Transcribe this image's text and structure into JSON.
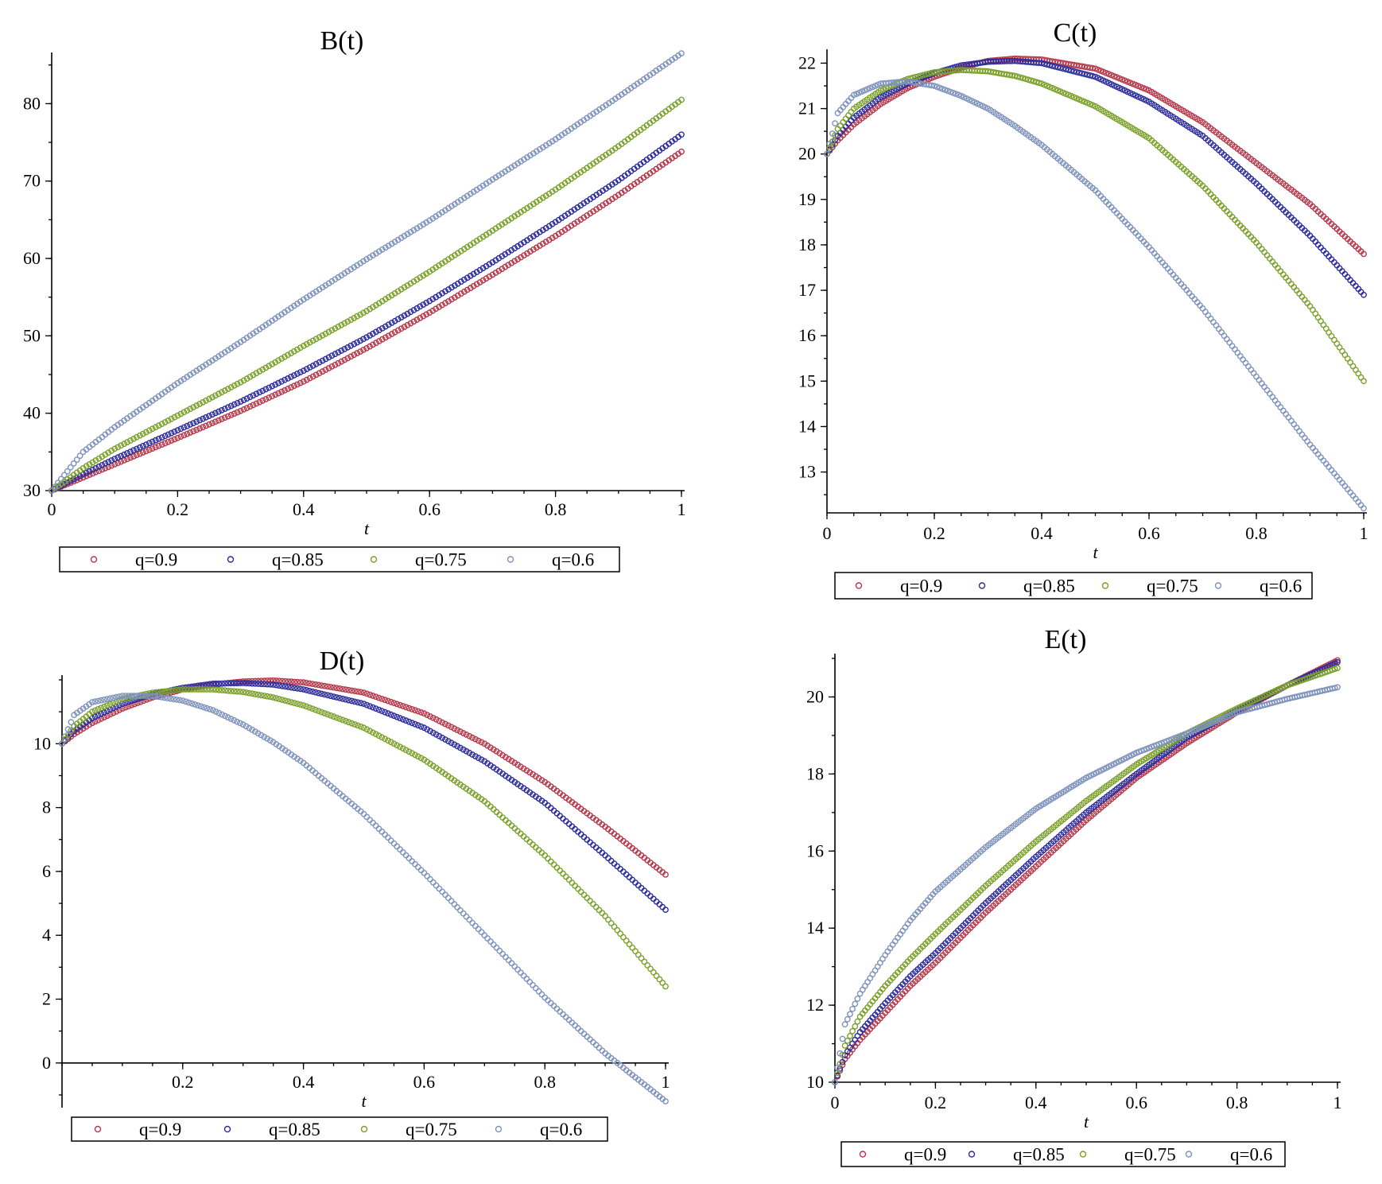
{
  "legend_labels": [
    "q=0.9",
    "q=0.85",
    "q=0.75",
    "q=0.6"
  ],
  "series_colors": [
    "#b5374a",
    "#2c2c9c",
    "#7aa02a",
    "#7e92bc"
  ],
  "chart_data": [
    {
      "type": "scatter",
      "title": "B(t)",
      "xlabel": "t",
      "ylabel": "",
      "xlim": [
        0,
        1
      ],
      "ylim": [
        30,
        86
      ],
      "xticks": [
        0,
        0.2,
        0.4,
        0.6,
        0.8,
        1
      ],
      "xtick_labels": [
        "0",
        "0.2",
        "0.4",
        "0.6",
        "0.8",
        "1"
      ],
      "yticks": [
        30,
        40,
        50,
        60,
        70,
        80
      ],
      "ytick_labels": [
        "30",
        "40",
        "50",
        "60",
        "70",
        "80"
      ],
      "legend_position": "bottom",
      "x": [
        0,
        0.05,
        0.1,
        0.2,
        0.3,
        0.4,
        0.5,
        0.6,
        0.7,
        0.8,
        0.9,
        1
      ],
      "series": [
        {
          "name": "q=0.9",
          "values": [
            30,
            31.7,
            33.4,
            36.8,
            40.3,
            44.1,
            48.4,
            53,
            57.9,
            62.9,
            68.2,
            73.8
          ]
        },
        {
          "name": "q=0.85",
          "values": [
            30,
            32.1,
            34.1,
            37.8,
            41.5,
            45.5,
            49.8,
            54.5,
            59.5,
            64.7,
            70.1,
            76
          ]
        },
        {
          "name": "q=0.75",
          "values": [
            30,
            32.9,
            35.4,
            39.7,
            44,
            48.7,
            53.2,
            58.3,
            63.6,
            68.9,
            74.5,
            80.5
          ]
        },
        {
          "name": "q=0.6",
          "values": [
            30,
            35,
            38.2,
            43.9,
            49.2,
            54.7,
            59.9,
            64.9,
            70.2,
            75.4,
            80.9,
            86.5
          ]
        }
      ]
    },
    {
      "type": "scatter",
      "title": "C(t)",
      "xlabel": "t",
      "ylabel": "",
      "xlim": [
        0,
        1
      ],
      "ylim": [
        12.1,
        22.2
      ],
      "xticks": [
        0,
        0.2,
        0.4,
        0.6,
        0.8,
        1
      ],
      "xtick_labels": [
        "0",
        "0.2",
        "0.4",
        "0.6",
        "0.8",
        "1"
      ],
      "yticks": [
        13,
        14,
        15,
        16,
        17,
        18,
        19,
        20,
        21,
        22
      ],
      "ytick_labels": [
        "13",
        "14",
        "15",
        "16",
        "17",
        "18",
        "19",
        "20",
        "21",
        "22"
      ],
      "legend_position": "bottom",
      "x": [
        0,
        0.02,
        0.05,
        0.1,
        0.15,
        0.2,
        0.25,
        0.3,
        0.35,
        0.4,
        0.5,
        0.6,
        0.7,
        0.8,
        0.9,
        1
      ],
      "series": [
        {
          "name": "q=0.9",
          "values": [
            20,
            20.3,
            20.65,
            21.1,
            21.45,
            21.7,
            21.9,
            22.05,
            22.1,
            22.08,
            21.88,
            21.4,
            20.7,
            19.8,
            18.9,
            17.8
          ]
        },
        {
          "name": "q=0.85",
          "values": [
            20,
            20.4,
            20.8,
            21.25,
            21.55,
            21.78,
            21.95,
            22.03,
            22.05,
            22,
            21.7,
            21.15,
            20.4,
            19.35,
            18.2,
            16.9
          ]
        },
        {
          "name": "q=0.75",
          "values": [
            20,
            20.55,
            21,
            21.4,
            21.65,
            21.8,
            21.85,
            21.82,
            21.72,
            21.55,
            21.05,
            20.35,
            19.3,
            18.05,
            16.65,
            15
          ]
        },
        {
          "name": "q=0.6",
          "values": [
            20,
            20.9,
            21.3,
            21.55,
            21.6,
            21.5,
            21.28,
            21,
            20.62,
            20.2,
            19.2,
            17.95,
            16.6,
            15.1,
            13.6,
            12.2
          ]
        }
      ]
    },
    {
      "type": "scatter",
      "title": "D(t)",
      "xlabel": "t",
      "ylabel": "",
      "xlim": [
        0,
        1
      ],
      "ylim": [
        -1.2,
        12
      ],
      "xticks": [
        0.2,
        0.4,
        0.6,
        0.8,
        1
      ],
      "xtick_labels": [
        "0.2",
        "0.4",
        "0.6",
        "0.8",
        "1"
      ],
      "yticks": [
        0,
        2,
        4,
        6,
        8,
        10
      ],
      "ytick_labels": [
        "0",
        "2",
        "4",
        "6",
        "8",
        "10"
      ],
      "legend_position": "bottom",
      "x": [
        0,
        0.02,
        0.05,
        0.1,
        0.15,
        0.2,
        0.25,
        0.3,
        0.35,
        0.4,
        0.5,
        0.6,
        0.7,
        0.8,
        0.9,
        1
      ],
      "series": [
        {
          "name": "q=0.9",
          "values": [
            10,
            10.3,
            10.65,
            11.1,
            11.45,
            11.7,
            11.85,
            11.95,
            11.98,
            11.92,
            11.6,
            10.95,
            10,
            8.8,
            7.4,
            5.9
          ]
        },
        {
          "name": "q=0.85",
          "values": [
            10,
            10.4,
            10.8,
            11.25,
            11.55,
            11.75,
            11.88,
            11.9,
            11.85,
            11.7,
            11.25,
            10.5,
            9.45,
            8.15,
            6.5,
            4.8
          ]
        },
        {
          "name": "q=0.75",
          "values": [
            10,
            10.55,
            11,
            11.4,
            11.6,
            11.7,
            11.7,
            11.62,
            11.45,
            11.2,
            10.5,
            9.5,
            8.2,
            6.5,
            4.6,
            2.4
          ]
        },
        {
          "name": "q=0.6",
          "values": [
            10,
            10.9,
            11.3,
            11.5,
            11.5,
            11.35,
            11.05,
            10.6,
            10.05,
            9.4,
            7.8,
            5.95,
            4,
            2.05,
            0.3,
            -1.2
          ]
        }
      ]
    },
    {
      "type": "scatter",
      "title": "E(t)",
      "xlabel": "t",
      "ylabel": "",
      "xlim": [
        0,
        1
      ],
      "ylim": [
        10,
        21
      ],
      "xticks": [
        0,
        0.2,
        0.4,
        0.6,
        0.8,
        1
      ],
      "xtick_labels": [
        "0",
        "0.2",
        "0.4",
        "0.6",
        "0.8",
        "1"
      ],
      "yticks": [
        10,
        12,
        14,
        16,
        18,
        20
      ],
      "ytick_labels": [
        "10",
        "12",
        "14",
        "16",
        "18",
        "20"
      ],
      "legend_position": "bottom",
      "x": [
        0,
        0.02,
        0.05,
        0.1,
        0.15,
        0.2,
        0.3,
        0.4,
        0.5,
        0.6,
        0.7,
        0.8,
        0.9,
        1
      ],
      "series": [
        {
          "name": "q=0.9",
          "values": [
            10,
            10.6,
            11.1,
            11.8,
            12.5,
            13.1,
            14.4,
            15.6,
            16.8,
            17.9,
            18.8,
            19.6,
            20.3,
            20.95
          ]
        },
        {
          "name": "q=0.85",
          "values": [
            10,
            10.7,
            11.3,
            12.05,
            12.75,
            13.35,
            14.65,
            15.85,
            17,
            18,
            18.95,
            19.65,
            20.3,
            20.9
          ]
        },
        {
          "name": "q=0.75",
          "values": [
            10,
            10.95,
            11.7,
            12.5,
            13.2,
            13.85,
            15.1,
            16.25,
            17.3,
            18.25,
            19.05,
            19.7,
            20.3,
            20.75
          ]
        },
        {
          "name": "q=0.6",
          "values": [
            10,
            11.5,
            12.3,
            13.3,
            14.2,
            14.95,
            16.1,
            17.1,
            17.9,
            18.55,
            19.05,
            19.6,
            19.95,
            20.25
          ]
        }
      ]
    }
  ]
}
